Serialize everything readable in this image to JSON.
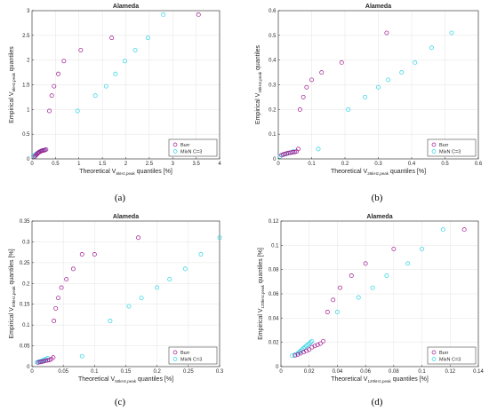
{
  "colors": {
    "butt": "#a0188f",
    "mixn": "#29d3e4",
    "axis": "#262626",
    "grid": "#e3e3e3"
  },
  "chart_data": [
    {
      "type": "scatter",
      "caption": "(a)",
      "title": "Alameda",
      "xlabel": {
        "main": "Theoretical V",
        "sub": "6kHz,peak",
        "tail": " quantiles [%]"
      },
      "ylabel": {
        "main": "Empirical V",
        "sub": "6kHz,peak",
        "tail": " quantiles"
      },
      "xlim": [
        0,
        4
      ],
      "ylim": [
        0,
        3
      ],
      "xticks": [
        0,
        0.5,
        1,
        1.5,
        2,
        2.5,
        3,
        3.5,
        4
      ],
      "yticks": [
        0,
        0.5,
        1,
        1.5,
        2,
        2.5,
        3
      ],
      "grid": true,
      "legend": "bottom-right",
      "series": [
        {
          "name": "Burr",
          "color_key": "butt",
          "x": [
            0.06,
            0.08,
            0.1,
            0.12,
            0.14,
            0.16,
            0.18,
            0.2,
            0.22,
            0.25,
            0.28,
            0.3,
            0.37,
            0.42,
            0.47,
            0.56,
            0.68,
            1.04,
            1.7,
            3.55
          ],
          "y": [
            0.05,
            0.07,
            0.09,
            0.11,
            0.13,
            0.14,
            0.15,
            0.16,
            0.17,
            0.17,
            0.18,
            0.19,
            0.97,
            1.28,
            1.47,
            1.72,
            1.98,
            2.2,
            2.45,
            2.92
          ]
        },
        {
          "name": "MixN C=3",
          "color_key": "mixn",
          "x": [
            0.03,
            0.06,
            0.09,
            0.12,
            0.15,
            0.18,
            0.2,
            0.23,
            0.26,
            0.97,
            1.35,
            1.58,
            1.78,
            1.98,
            2.2,
            2.47,
            2.8
          ],
          "y": [
            0.05,
            0.08,
            0.1,
            0.12,
            0.14,
            0.15,
            0.16,
            0.17,
            0.18,
            0.97,
            1.28,
            1.47,
            1.72,
            1.98,
            2.2,
            2.45,
            2.92
          ]
        }
      ]
    },
    {
      "type": "scatter",
      "caption": "(b)",
      "title": "Alameda",
      "xlabel": {
        "main": "Theoretical V",
        "sub": "26kHz,peak",
        "tail": " quantiles [%]"
      },
      "ylabel": {
        "main": "Empirical V",
        "sub": "26kHz,peak",
        "tail": " quantiles"
      },
      "xlim": [
        0,
        0.6
      ],
      "ylim": [
        0,
        0.6
      ],
      "xticks": [
        0,
        0.1,
        0.2,
        0.3,
        0.4,
        0.5,
        0.6
      ],
      "yticks": [
        0,
        0.1,
        0.2,
        0.3,
        0.4,
        0.5,
        0.6
      ],
      "grid": true,
      "legend": "bottom-right",
      "series": [
        {
          "name": "Burr",
          "color_key": "butt",
          "x": [
            0.01,
            0.015,
            0.02,
            0.025,
            0.03,
            0.035,
            0.04,
            0.045,
            0.05,
            0.055,
            0.06,
            0.065,
            0.075,
            0.085,
            0.1,
            0.13,
            0.19,
            0.325
          ],
          "y": [
            0.015,
            0.018,
            0.02,
            0.022,
            0.024,
            0.025,
            0.026,
            0.027,
            0.028,
            0.03,
            0.04,
            0.2,
            0.25,
            0.29,
            0.32,
            0.35,
            0.39,
            0.51
          ]
        },
        {
          "name": "MixN C=3",
          "color_key": "mixn",
          "x": [
            0.005,
            0.01,
            0.015,
            0.02,
            0.025,
            0.03,
            0.035,
            0.04,
            0.045,
            0.12,
            0.21,
            0.26,
            0.3,
            0.33,
            0.37,
            0.41,
            0.46,
            0.52
          ],
          "y": [
            0.01,
            0.015,
            0.017,
            0.019,
            0.021,
            0.023,
            0.025,
            0.027,
            0.03,
            0.04,
            0.2,
            0.25,
            0.29,
            0.32,
            0.35,
            0.39,
            0.45,
            0.51
          ]
        }
      ]
    },
    {
      "type": "scatter",
      "caption": "(c)",
      "title": "Alameda",
      "xlabel": {
        "main": "Theoretical V",
        "sub": "50kHz,peak",
        "tail": " quantiles [%]"
      },
      "ylabel": {
        "main": "Empirical V",
        "sub": "50kHz,peak",
        "tail": " quantiles [%]"
      },
      "xlim": [
        0,
        0.3
      ],
      "ylim": [
        0,
        0.35
      ],
      "xticks": [
        0,
        0.05,
        0.1,
        0.15,
        0.2,
        0.25,
        0.3
      ],
      "yticks": [
        0,
        0.05,
        0.1,
        0.15,
        0.2,
        0.25,
        0.3,
        0.35
      ],
      "grid": true,
      "legend": "bottom-right",
      "series": [
        {
          "name": "Burr",
          "color_key": "butt",
          "x": [
            0.01,
            0.013,
            0.016,
            0.019,
            0.022,
            0.025,
            0.028,
            0.031,
            0.034,
            0.035,
            0.038,
            0.042,
            0.047,
            0.055,
            0.066,
            0.08,
            0.1,
            0.17
          ],
          "y": [
            0.01,
            0.011,
            0.012,
            0.013,
            0.014,
            0.015,
            0.016,
            0.018,
            0.022,
            0.11,
            0.14,
            0.165,
            0.19,
            0.21,
            0.235,
            0.27,
            0.27,
            0.31
          ]
        },
        {
          "name": "MixN C=3",
          "color_key": "mixn",
          "x": [
            0.008,
            0.01,
            0.012,
            0.014,
            0.016,
            0.018,
            0.02,
            0.022,
            0.025,
            0.08,
            0.125,
            0.155,
            0.175,
            0.2,
            0.22,
            0.245,
            0.27,
            0.3
          ],
          "y": [
            0.01,
            0.011,
            0.012,
            0.013,
            0.014,
            0.015,
            0.016,
            0.018,
            0.02,
            0.025,
            0.11,
            0.145,
            0.165,
            0.19,
            0.21,
            0.235,
            0.27,
            0.31
          ]
        }
      ]
    },
    {
      "type": "scatter",
      "caption": "(d)",
      "title": "Alameda",
      "xlabel": {
        "main": "Theoretical V",
        "sub": "120kHz,peak",
        "tail": " quantiles [%]"
      },
      "ylabel": {
        "main": "Empirical V",
        "sub": "120kHz,peak",
        "tail": " quantiles [%]"
      },
      "xlim": [
        0,
        0.14
      ],
      "ylim": [
        0,
        0.12
      ],
      "xticks": [
        0,
        0.02,
        0.04,
        0.06,
        0.08,
        0.1,
        0.12,
        0.14
      ],
      "yticks": [
        0,
        0.02,
        0.04,
        0.06,
        0.08,
        0.1,
        0.12
      ],
      "grid": true,
      "legend": "bottom-right",
      "series": [
        {
          "name": "Burr",
          "color_key": "butt",
          "x": [
            0.01,
            0.012,
            0.014,
            0.016,
            0.018,
            0.02,
            0.022,
            0.024,
            0.026,
            0.028,
            0.03,
            0.033,
            0.037,
            0.042,
            0.05,
            0.06,
            0.08,
            0.13
          ],
          "y": [
            0.009,
            0.01,
            0.011,
            0.012,
            0.013,
            0.014,
            0.016,
            0.017,
            0.018,
            0.019,
            0.021,
            0.045,
            0.055,
            0.065,
            0.075,
            0.085,
            0.097,
            0.113
          ]
        },
        {
          "name": "MixN C=3",
          "color_key": "mixn",
          "x": [
            0.008,
            0.01,
            0.012,
            0.013,
            0.014,
            0.015,
            0.016,
            0.017,
            0.018,
            0.019,
            0.02,
            0.021,
            0.022,
            0.04,
            0.055,
            0.065,
            0.075,
            0.09,
            0.1,
            0.115
          ],
          "y": [
            0.009,
            0.01,
            0.011,
            0.012,
            0.013,
            0.014,
            0.015,
            0.016,
            0.017,
            0.018,
            0.019,
            0.02,
            0.021,
            0.045,
            0.057,
            0.065,
            0.075,
            0.085,
            0.097,
            0.113
          ]
        }
      ]
    }
  ]
}
